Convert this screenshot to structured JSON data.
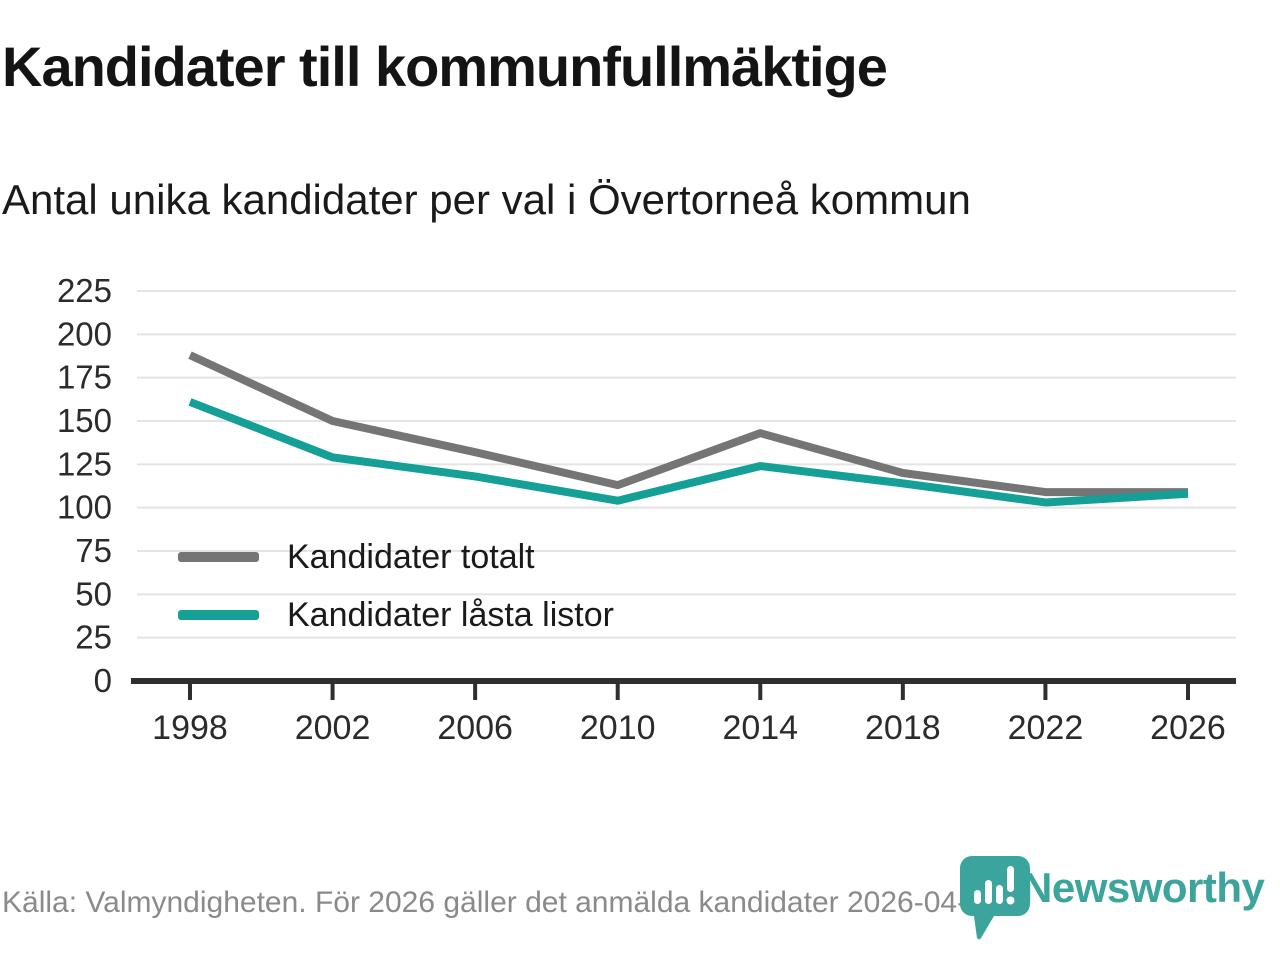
{
  "header": {
    "title": "Kandidater till kommunfullmäktige",
    "subtitle": "Antal unika kandidater per val i Övertorneå kommun"
  },
  "chart_data": {
    "type": "line",
    "categories": [
      "1998",
      "2002",
      "2006",
      "2010",
      "2014",
      "2018",
      "2022",
      "2026"
    ],
    "series": [
      {
        "name": "Kandidater totalt",
        "color": "#757575",
        "values": [
          188,
          150,
          132,
          113,
          143,
          120,
          109,
          109
        ]
      },
      {
        "name": "Kandidater låsta listor",
        "color": "#14a096",
        "values": [
          161,
          129,
          118,
          104,
          124,
          114,
          103,
          108
        ]
      }
    ],
    "title": "Kandidater till kommunfullmäktige",
    "xlabel": "",
    "ylabel": "",
    "ylim": [
      0,
      225
    ],
    "yticks": [
      0,
      25,
      50,
      75,
      100,
      125,
      150,
      175,
      200,
      225
    ],
    "grid": "horizontal",
    "legend_position": "inside-bottom-left"
  },
  "footer": {
    "source": "Källa: Valmyndigheten. För 2026 gäller det anmälda kandidater 2026-04-10.",
    "brand": "Newsworthy"
  },
  "colors": {
    "axis": "#2f2f2f",
    "gridline": "#e4e4e4",
    "tick_label": "#2b2b2b",
    "footer_text": "#8a8a8a",
    "brand_teal": "#3ba49d"
  }
}
